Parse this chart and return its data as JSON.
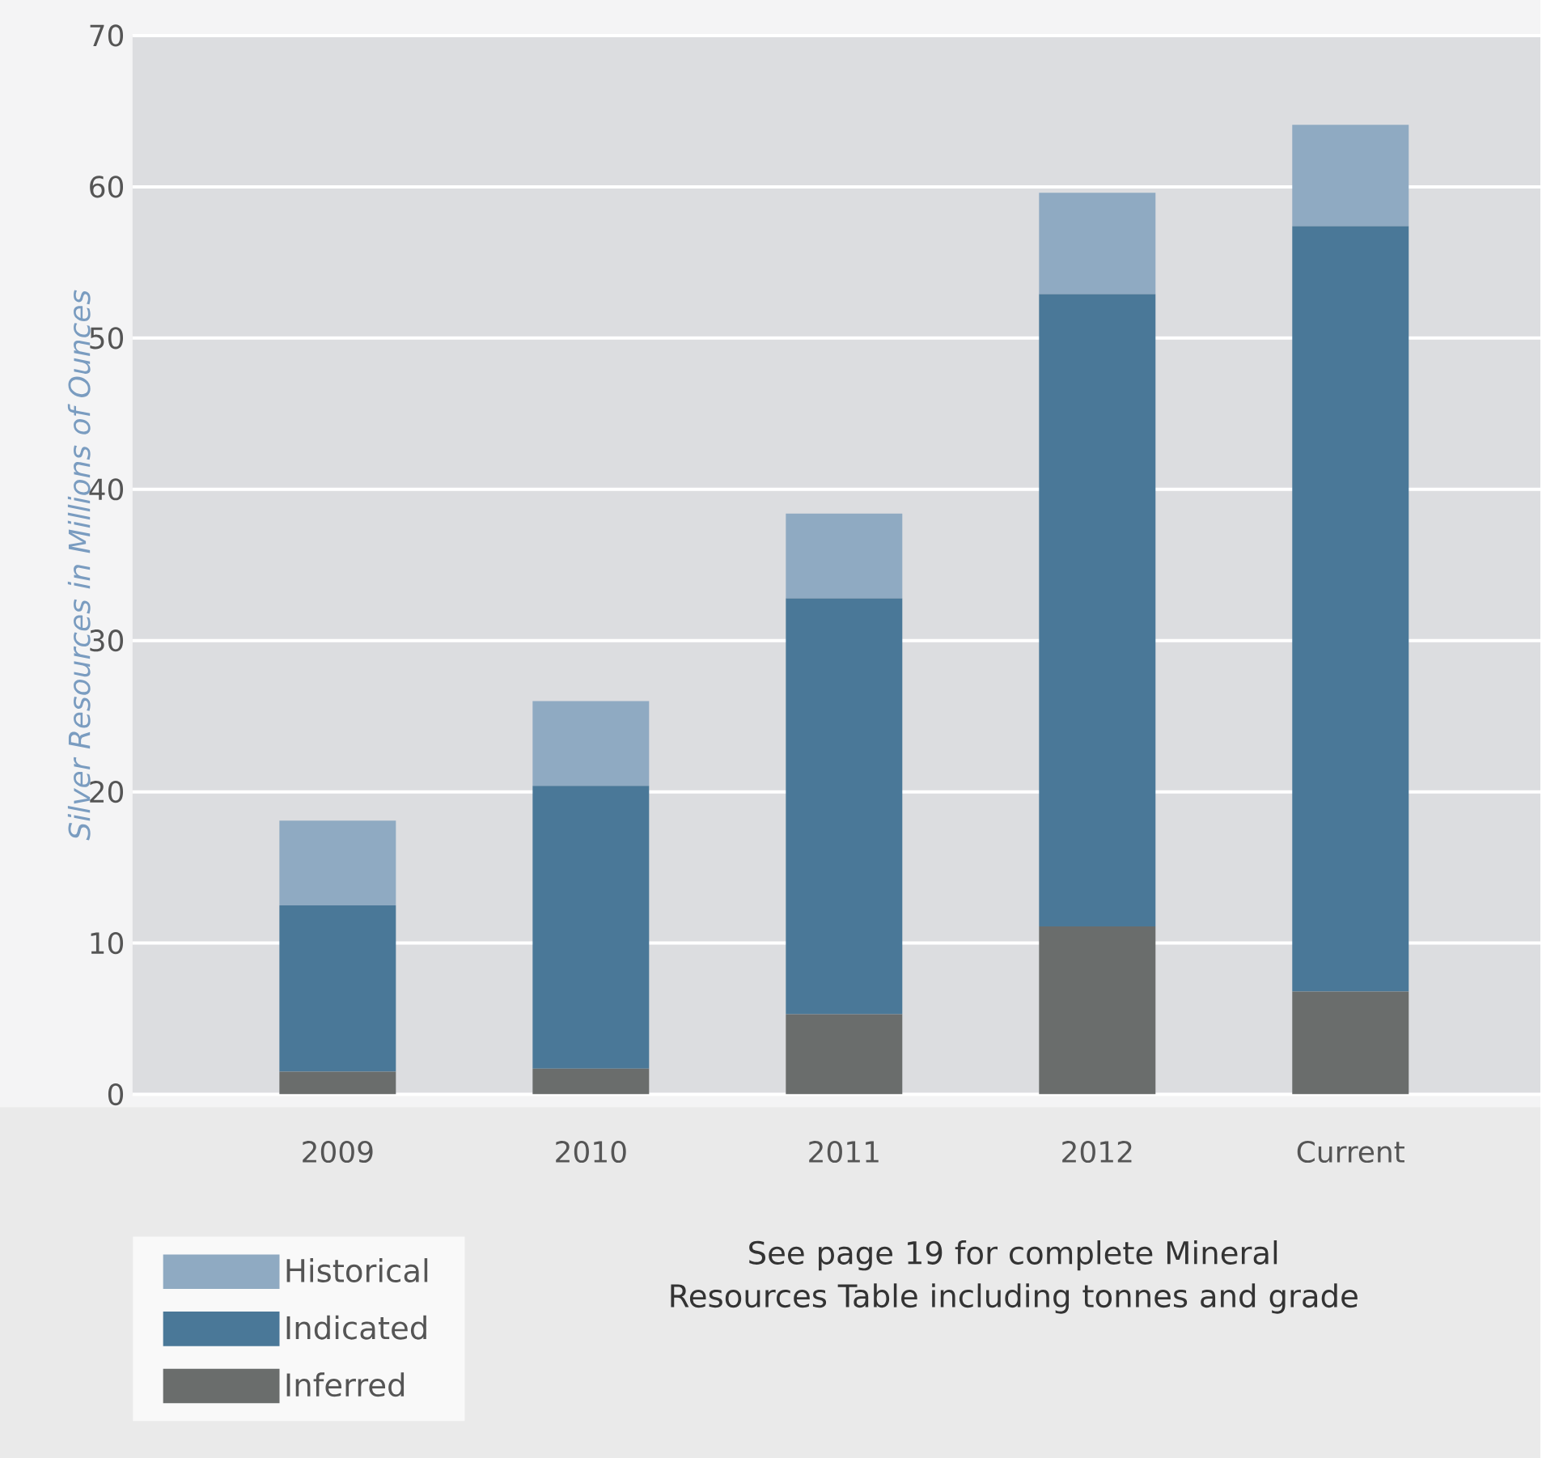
{
  "chart_data": {
    "type": "bar",
    "stacked": true,
    "categories": [
      "2009",
      "2010",
      "2011",
      "2012",
      "Current"
    ],
    "series": [
      {
        "name": "Inferred",
        "color": "#6a6d6c",
        "values": [
          1.5,
          1.7,
          5.3,
          11.1,
          6.8
        ]
      },
      {
        "name": "Indicated",
        "color": "#4a7898",
        "values": [
          11.0,
          18.7,
          27.5,
          41.8,
          50.6
        ]
      },
      {
        "name": "Historical",
        "color": "#8faac2",
        "values": [
          5.6,
          5.6,
          5.6,
          6.7,
          6.7
        ]
      }
    ],
    "ylabel": "Silver Resources in Millions of Ounces",
    "ylim": [
      0,
      70
    ],
    "yticks": [
      0,
      10,
      20,
      30,
      40,
      50,
      60,
      70
    ],
    "grid": "y",
    "legend": "bottom left",
    "annotations": [
      "See page 19 for complete Mineral Resources Table including tonnes and grade"
    ]
  }
}
